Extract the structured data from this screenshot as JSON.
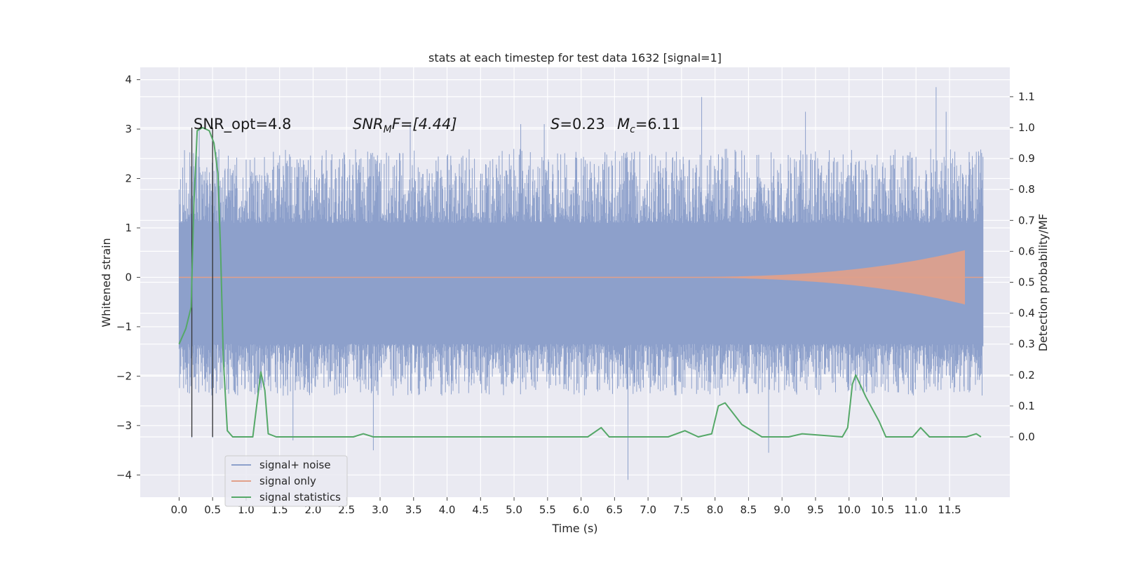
{
  "chart_data": {
    "type": "line",
    "title": "stats at each timestep for test data 1632 [signal=1]",
    "xlabel": "Time (s)",
    "ylabel": "Whitened strain",
    "y2label": "Detection probability/MF",
    "xlim": [
      -0.58,
      12.4
    ],
    "ylim": [
      -4.45,
      4.25
    ],
    "y2lim": [
      -0.195,
      1.195
    ],
    "x_ticks": [
      "0.0",
      "0.5",
      "1.0",
      "1.5",
      "2.0",
      "2.5",
      "3.0",
      "3.5",
      "4.0",
      "4.5",
      "5.0",
      "5.5",
      "6.0",
      "6.5",
      "7.0",
      "7.5",
      "8.0",
      "8.5",
      "9.0",
      "9.5",
      "10.0",
      "10.5",
      "11.0",
      "11.5"
    ],
    "y_ticks": [
      "4",
      "3",
      "2",
      "1",
      "0",
      "−1",
      "−2",
      "−3",
      "−4"
    ],
    "y2_ticks": [
      "1.1",
      "1.0",
      "0.9",
      "0.8",
      "0.7",
      "0.6",
      "0.5",
      "0.4",
      "0.3",
      "0.2",
      "0.1",
      "0.0"
    ],
    "grid": true,
    "legend": {
      "placement": "lower-left",
      "entries": [
        {
          "label": "signal+ noise",
          "color": "#8da0cb"
        },
        {
          "label": "signal only",
          "color": "#e1a08a"
        },
        {
          "label": "signal statistics",
          "color": "#55a868"
        }
      ]
    },
    "annotations": {
      "snr_opt": "SNR_opt=4.8",
      "snr_mf_main": "SNR",
      "snr_mf_sub": "M",
      "snr_mf_rest": "F=[4.44]",
      "s_main": "S",
      "s_rest": "=0.23",
      "mc_main": "M",
      "mc_sub": "c",
      "mc_rest": "=6.11"
    },
    "vertical_lines_x": [
      0.19,
      0.5
    ],
    "noise_series": {
      "name": "signal+ noise",
      "x_range": [
        0.0,
        12.0
      ],
      "core_band": [
        -1.35,
        1.1
      ],
      "typical_peaks": [
        -2.4,
        2.6
      ],
      "spikes": [
        {
          "x": 0.19,
          "y": -3.25
        },
        {
          "x": 0.5,
          "y": -3.25
        },
        {
          "x": 0.3,
          "y": 3.0
        },
        {
          "x": 1.7,
          "y": -3.3
        },
        {
          "x": 2.9,
          "y": -3.5
        },
        {
          "x": 3.45,
          "y": 3.1
        },
        {
          "x": 5.1,
          "y": 3.1
        },
        {
          "x": 5.45,
          "y": 3.1
        },
        {
          "x": 6.7,
          "y": -4.1
        },
        {
          "x": 7.8,
          "y": 3.65
        },
        {
          "x": 8.8,
          "y": -3.55
        },
        {
          "x": 9.35,
          "y": 3.35
        },
        {
          "x": 11.3,
          "y": 3.85
        },
        {
          "x": 11.45,
          "y": 3.35
        }
      ]
    },
    "signal_series": {
      "name": "signal only",
      "x_range": [
        0.0,
        11.73
      ],
      "amplitude_start": 0.002,
      "amplitude_end": 0.55,
      "chirp_start_x": 6.8
    },
    "stats_series": {
      "name": "signal statistics",
      "axis": "right",
      "points": [
        [
          0.0,
          0.3
        ],
        [
          0.1,
          0.35
        ],
        [
          0.18,
          0.42
        ],
        [
          0.22,
          0.75
        ],
        [
          0.27,
          0.99
        ],
        [
          0.35,
          1.0
        ],
        [
          0.45,
          0.99
        ],
        [
          0.52,
          0.95
        ],
        [
          0.58,
          0.85
        ],
        [
          0.62,
          0.6
        ],
        [
          0.66,
          0.25
        ],
        [
          0.72,
          0.02
        ],
        [
          0.8,
          0.0
        ],
        [
          1.1,
          0.0
        ],
        [
          1.22,
          0.21
        ],
        [
          1.28,
          0.15
        ],
        [
          1.33,
          0.01
        ],
        [
          1.45,
          0.0
        ],
        [
          2.6,
          0.0
        ],
        [
          2.75,
          0.01
        ],
        [
          2.9,
          0.0
        ],
        [
          4.3,
          0.0
        ],
        [
          4.45,
          0.0
        ],
        [
          6.1,
          0.0
        ],
        [
          6.3,
          0.03
        ],
        [
          6.42,
          0.0
        ],
        [
          7.3,
          0.0
        ],
        [
          7.55,
          0.02
        ],
        [
          7.75,
          0.0
        ],
        [
          7.95,
          0.01
        ],
        [
          8.05,
          0.1
        ],
        [
          8.15,
          0.11
        ],
        [
          8.4,
          0.04
        ],
        [
          8.7,
          0.0
        ],
        [
          9.1,
          0.0
        ],
        [
          9.3,
          0.01
        ],
        [
          9.9,
          0.0
        ],
        [
          9.98,
          0.03
        ],
        [
          10.05,
          0.17
        ],
        [
          10.1,
          0.2
        ],
        [
          10.25,
          0.13
        ],
        [
          10.45,
          0.05
        ],
        [
          10.55,
          0.0
        ],
        [
          10.95,
          0.0
        ],
        [
          11.07,
          0.03
        ],
        [
          11.2,
          0.0
        ],
        [
          11.75,
          0.0
        ],
        [
          11.9,
          0.01
        ],
        [
          11.97,
          0.0
        ]
      ]
    }
  }
}
